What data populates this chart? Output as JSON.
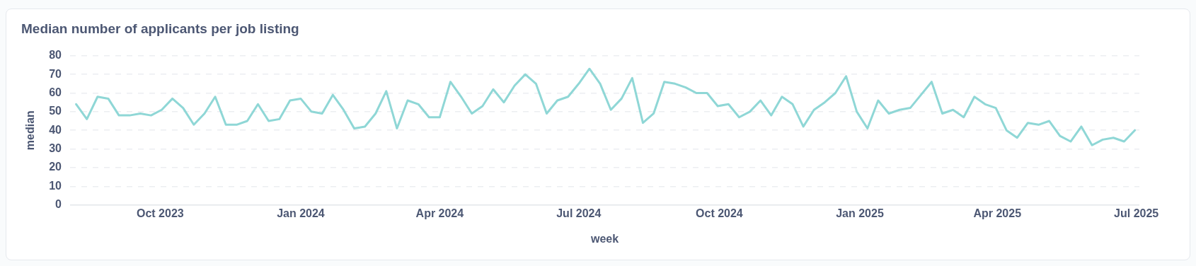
{
  "chart_data": {
    "type": "line",
    "title": "Median number of applicants per job listing",
    "xlabel": "week",
    "ylabel": "median",
    "x": [
      "2023-08-07",
      "2023-08-14",
      "2023-08-21",
      "2023-08-28",
      "2023-09-04",
      "2023-09-11",
      "2023-09-18",
      "2023-09-25",
      "2023-10-02",
      "2023-10-09",
      "2023-10-16",
      "2023-10-23",
      "2023-10-30",
      "2023-11-06",
      "2023-11-13",
      "2023-11-20",
      "2023-11-27",
      "2023-12-04",
      "2023-12-11",
      "2023-12-18",
      "2023-12-25",
      "2024-01-01",
      "2024-01-08",
      "2024-01-15",
      "2024-01-22",
      "2024-01-29",
      "2024-02-05",
      "2024-02-12",
      "2024-02-19",
      "2024-02-26",
      "2024-03-04",
      "2024-03-11",
      "2024-03-18",
      "2024-03-25",
      "2024-04-01",
      "2024-04-08",
      "2024-04-15",
      "2024-04-22",
      "2024-04-29",
      "2024-05-06",
      "2024-05-13",
      "2024-05-20",
      "2024-05-27",
      "2024-06-03",
      "2024-06-10",
      "2024-06-17",
      "2024-06-24",
      "2024-07-01",
      "2024-07-08",
      "2024-07-15",
      "2024-07-22",
      "2024-07-29",
      "2024-08-05",
      "2024-08-12",
      "2024-08-19",
      "2024-08-26",
      "2024-09-02",
      "2024-09-09",
      "2024-09-16",
      "2024-09-23",
      "2024-09-30",
      "2024-10-07",
      "2024-10-14",
      "2024-10-21",
      "2024-10-28",
      "2024-11-04",
      "2024-11-11",
      "2024-11-18",
      "2024-11-25",
      "2024-12-02",
      "2024-12-09",
      "2024-12-16",
      "2024-12-23",
      "2024-12-30",
      "2025-01-06",
      "2025-01-13",
      "2025-01-20",
      "2025-01-27",
      "2025-02-03",
      "2025-02-10",
      "2025-02-17",
      "2025-02-24",
      "2025-03-03",
      "2025-03-10",
      "2025-03-17",
      "2025-03-24",
      "2025-03-31",
      "2025-04-07",
      "2025-04-14",
      "2025-04-21",
      "2025-04-28",
      "2025-05-05",
      "2025-05-12",
      "2025-05-19",
      "2025-05-26",
      "2025-06-02",
      "2025-06-09",
      "2025-06-16",
      "2025-06-23",
      "2025-06-30"
    ],
    "series": [
      {
        "color": "#8fd7d6",
        "values": [
          54,
          46,
          58,
          57,
          48,
          48,
          49,
          48,
          51,
          57,
          52,
          43,
          49,
          58,
          43,
          43,
          45,
          54,
          45,
          46,
          56,
          57,
          50,
          49,
          59,
          51,
          41,
          42,
          49,
          61,
          41,
          56,
          54,
          47,
          47,
          66,
          58,
          49,
          53,
          62,
          55,
          64,
          70,
          65,
          49,
          56,
          58,
          65,
          73,
          65,
          51,
          57,
          68,
          44,
          49,
          66,
          65,
          63,
          60,
          60,
          53,
          54,
          47,
          50,
          56,
          48,
          58,
          54,
          42,
          51,
          55,
          60,
          69,
          50,
          41,
          56,
          49,
          51,
          52,
          59,
          66,
          49,
          51,
          47,
          58,
          54,
          52,
          40,
          36,
          44,
          43,
          45,
          37,
          34,
          42,
          32,
          35,
          36,
          34,
          40
        ]
      }
    ],
    "xlim": [
      "2023-08-03",
      "2025-07-03"
    ],
    "xticks": [
      {
        "value": "2023-10-01",
        "label": "Oct 2023"
      },
      {
        "value": "2024-01-01",
        "label": "Jan 2024"
      },
      {
        "value": "2024-04-01",
        "label": "Apr 2024"
      },
      {
        "value": "2024-07-01",
        "label": "Jul 2024"
      },
      {
        "value": "2024-10-01",
        "label": "Oct 2024"
      },
      {
        "value": "2025-01-01",
        "label": "Jan 2025"
      },
      {
        "value": "2025-04-01",
        "label": "Apr 2025"
      },
      {
        "value": "2025-07-01",
        "label": "Jul 2025"
      }
    ],
    "ylim": [
      0,
      80
    ],
    "yticks": [
      0,
      10,
      20,
      30,
      40,
      50,
      60,
      70,
      80
    ],
    "grid": "y",
    "legend": false,
    "marker": "none",
    "line_style": "solid"
  }
}
